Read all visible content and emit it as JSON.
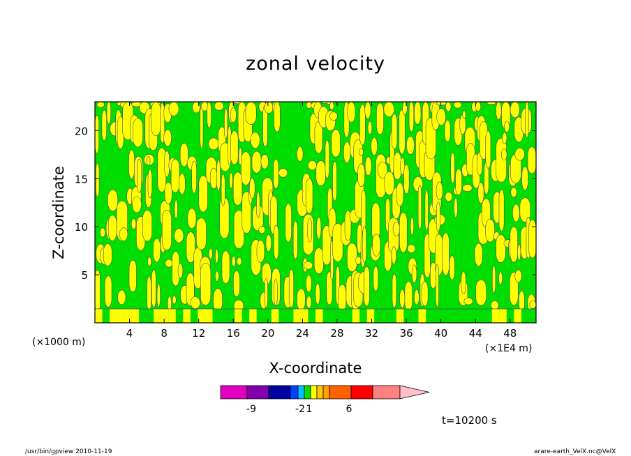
{
  "chart_data": {
    "type": "heatmap",
    "title": "zonal velocity",
    "xlabel": "X-coordinate",
    "ylabel": "Z-coordinate",
    "x_unit_left": "(×1000 m)",
    "x_unit_right": "(×1E4 m)",
    "x_ticks": [
      4,
      8,
      12,
      16,
      20,
      24,
      28,
      32,
      36,
      40,
      44,
      48
    ],
    "y_ticks": [
      5,
      10,
      15,
      20
    ],
    "xlim": [
      0,
      51
    ],
    "ylim": [
      0,
      23
    ],
    "fill_colors": {
      "positive": "#ffff00",
      "negative": "#00dd00"
    },
    "colorbar": {
      "colors": [
        "#e000c0",
        "#8000b0",
        "#0000a0",
        "#0040ff",
        "#00c0ff",
        "#00dd00",
        "#ffff00",
        "#ffc800",
        "#ffa000",
        "#ff6000",
        "#ff0000",
        "#ff8080",
        "#ffc0c8"
      ],
      "labels": [
        "-9",
        "-2",
        "1",
        "6"
      ]
    },
    "time_label": "t=10200 s"
  },
  "footer": {
    "left": "/usr/bin/gpview   2010-11-19",
    "right": "arare-earth_VelX.nc@VelX"
  }
}
